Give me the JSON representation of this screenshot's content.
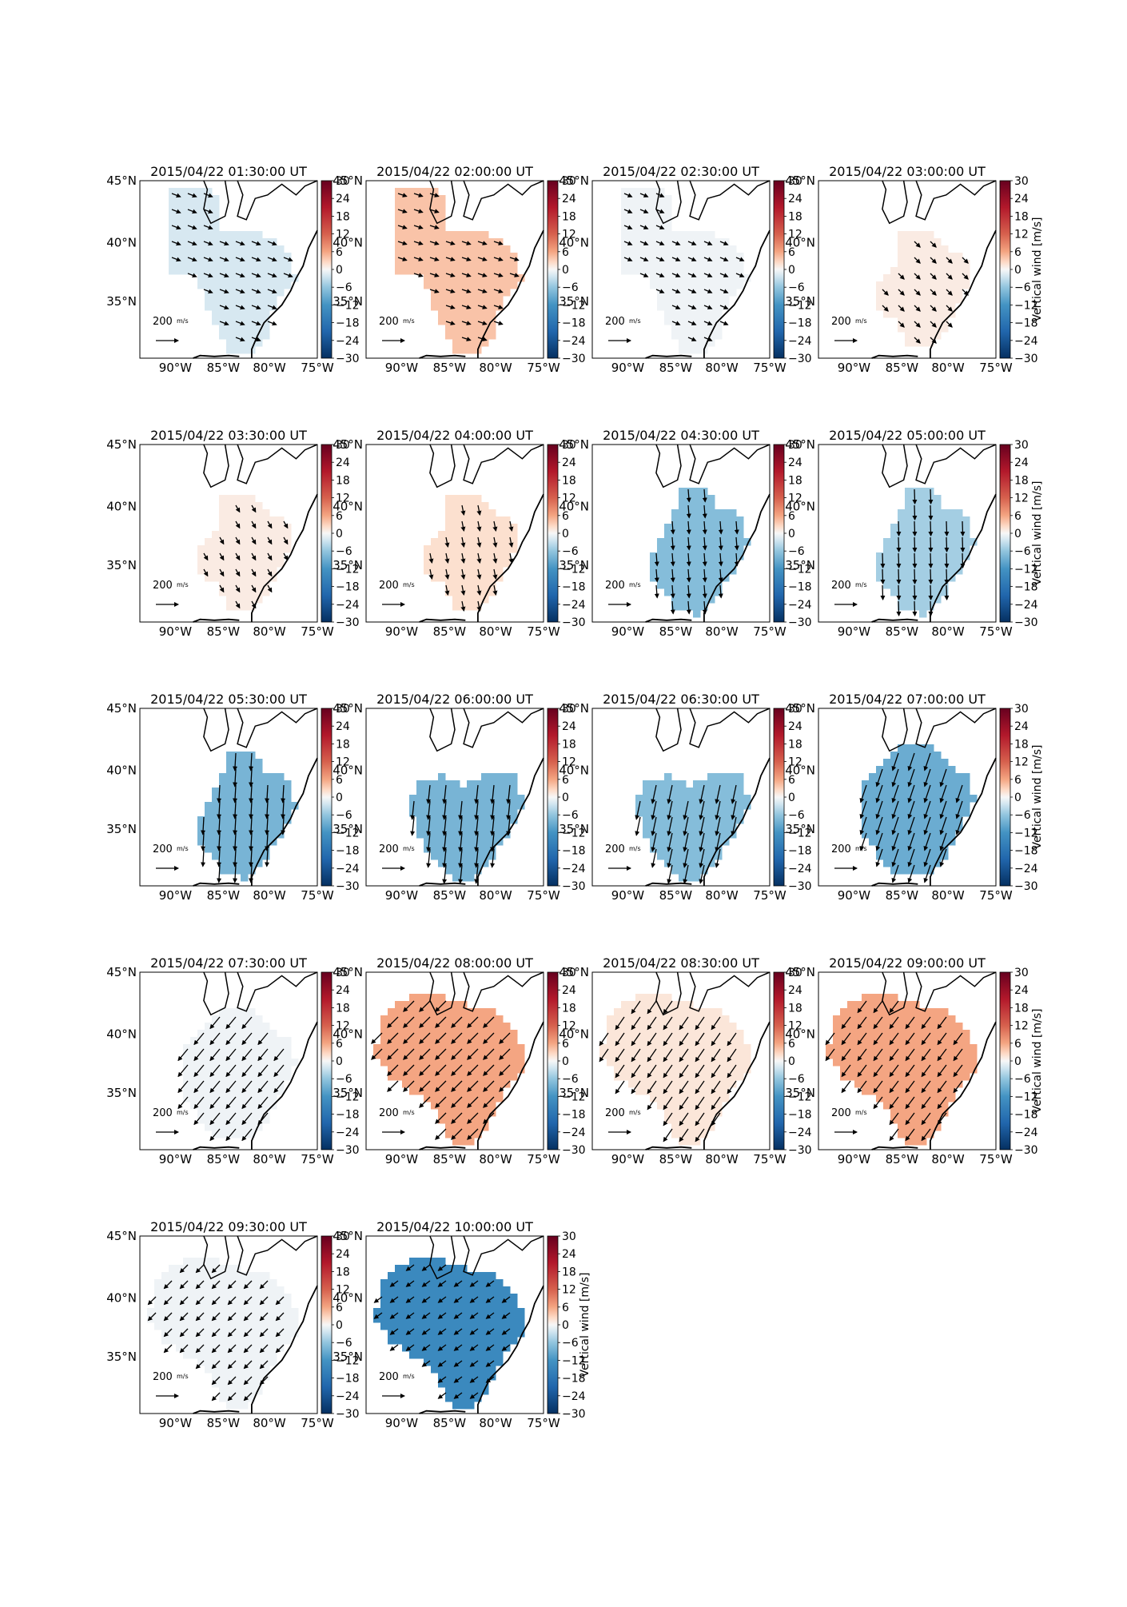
{
  "figure": {
    "colorbar": {
      "label": "Vertical wind [m/s]",
      "ticks": [
        "30",
        "24",
        "18",
        "12",
        "6",
        "0",
        "−6",
        "−12",
        "−18",
        "−24",
        "−30"
      ],
      "range": [
        -30,
        30
      ],
      "colors": {
        "max": "#67001f",
        "upper": "#d6604d",
        "mid_high": "#fddbc7",
        "mid": "#f7f7f7",
        "mid_low": "#d1e5f0",
        "lower": "#4393c3",
        "min": "#053061"
      }
    },
    "lat_labels": [
      "45°N",
      "40°N",
      "35°N"
    ],
    "lon_labels": [
      "90°W",
      "85°W",
      "80°W",
      "75°W"
    ],
    "scale_label": "200",
    "scale_unit": "m/s",
    "panels": [
      {
        "title": "2015/04/22 01:30:00 UT",
        "wind": -2,
        "vector": {
          "u": 0.9,
          "v": -0.35
        },
        "region": "wide"
      },
      {
        "title": "2015/04/22 02:00:00 UT",
        "wind": 4,
        "vector": {
          "u": 0.9,
          "v": -0.3
        },
        "region": "wide"
      },
      {
        "title": "2015/04/22 02:30:00 UT",
        "wind": -0.5,
        "vector": {
          "u": 0.8,
          "v": -0.35
        },
        "region": "wide"
      },
      {
        "title": "2015/04/22 03:00:00 UT",
        "wind": 1,
        "vector": {
          "u": 0.6,
          "v": -0.6
        },
        "region": "south"
      },
      {
        "title": "2015/04/22 03:30:00 UT",
        "wind": 1,
        "vector": {
          "u": 0.4,
          "v": -0.7
        },
        "region": "south"
      },
      {
        "title": "2015/04/22 04:00:00 UT",
        "wind": 2,
        "vector": {
          "u": 0.2,
          "v": -1.0
        },
        "region": "south"
      },
      {
        "title": "2015/04/22 04:30:00 UT",
        "wind": -7,
        "vector": {
          "u": 0.1,
          "v": -1.3
        },
        "region": "central"
      },
      {
        "title": "2015/04/22 05:00:00 UT",
        "wind": -5,
        "vector": {
          "u": 0.05,
          "v": -1.5
        },
        "region": "central"
      },
      {
        "title": "2015/04/22 05:30:00 UT",
        "wind": -8,
        "vector": {
          "u": -0.1,
          "v": -1.8
        },
        "region": "central"
      },
      {
        "title": "2015/04/22 06:00:00 UT",
        "wind": -8,
        "vector": {
          "u": -0.2,
          "v": -1.9
        },
        "region": "heart"
      },
      {
        "title": "2015/04/22 06:30:00 UT",
        "wind": -7,
        "vector": {
          "u": -0.4,
          "v": -1.9
        },
        "region": "heart"
      },
      {
        "title": "2015/04/22 07:00:00 UT",
        "wind": -9,
        "vector": {
          "u": -0.6,
          "v": -1.8
        },
        "region": "oval"
      },
      {
        "title": "2015/04/22 07:30:00 UT",
        "wind": -0.5,
        "vector": {
          "u": -1.0,
          "v": -1.2
        },
        "region": "oval"
      },
      {
        "title": "2015/04/22 08:00:00 UT",
        "wind": 6,
        "vector": {
          "u": -1.1,
          "v": -1.1
        },
        "region": "big"
      },
      {
        "title": "2015/04/22 08:30:00 UT",
        "wind": 1.5,
        "vector": {
          "u": -0.9,
          "v": -1.3
        },
        "region": "big"
      },
      {
        "title": "2015/04/22 09:00:00 UT",
        "wind": 6,
        "vector": {
          "u": -0.9,
          "v": -1.2
        },
        "region": "big"
      },
      {
        "title": "2015/04/22 09:30:00 UT",
        "wind": -0.5,
        "vector": {
          "u": -0.8,
          "v": -0.8
        },
        "region": "big"
      },
      {
        "title": "2015/04/22 10:00:00 UT",
        "wind": -14,
        "vector": {
          "u": -0.8,
          "v": -0.6
        },
        "region": "big"
      }
    ]
  }
}
